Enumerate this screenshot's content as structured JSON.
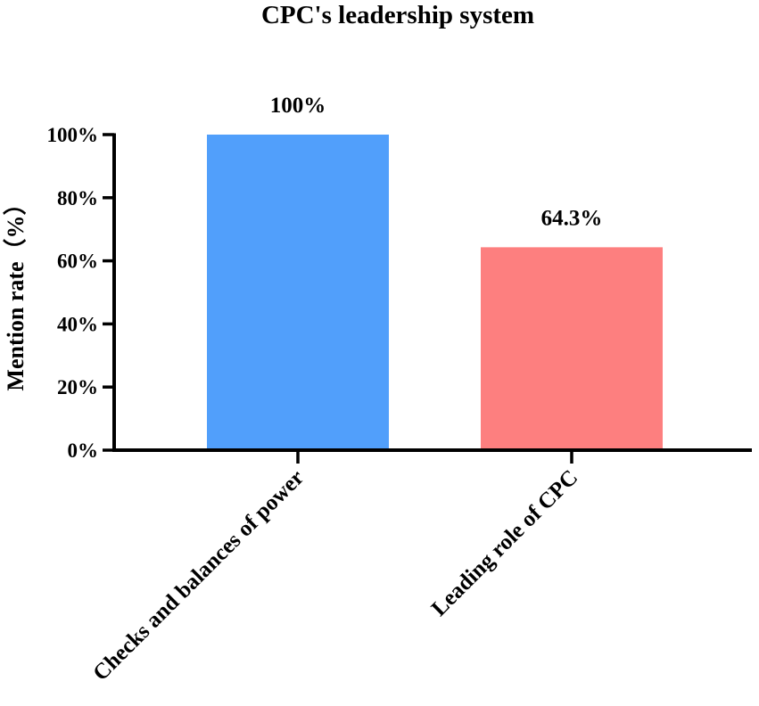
{
  "chart_data": {
    "type": "bar",
    "title": "CPC's leadership system",
    "xlabel": "",
    "ylabel": "Mention rate（%）",
    "ylim": [
      0,
      100
    ],
    "yticks": [
      0,
      20,
      40,
      60,
      80,
      100
    ],
    "ytick_labels": [
      "0%",
      "20%",
      "40%",
      "60%",
      "80%",
      "100%"
    ],
    "categories": [
      "Checks and balances of power",
      "Leading role of CPC"
    ],
    "values": [
      100,
      64.3
    ],
    "data_labels": [
      "100%",
      "64.3%"
    ],
    "colors": [
      "#519ffb",
      "#fd7f7f"
    ],
    "grid": false,
    "legend": "none"
  }
}
